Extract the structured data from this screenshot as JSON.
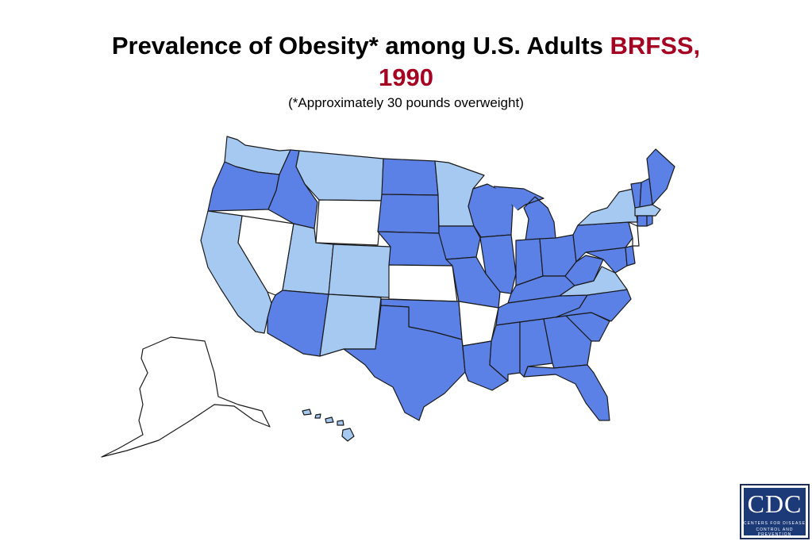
{
  "title": {
    "main": "Prevalence of Obesity* among U.S. Adults",
    "accent_line1": "BRFSS,",
    "accent_line2": "1990",
    "subtitle": "(*Approximately 30 pounds overweight)"
  },
  "legend_colors": {
    "white": "#ffffff",
    "light": "#a6c9f2",
    "medium": "#5b80e6"
  },
  "map": {
    "states": {
      "WA": "light",
      "OR": "medium",
      "CA": "light",
      "ID": "medium",
      "NV": "white",
      "MT": "light",
      "WY": "white",
      "UT": "light",
      "AZ": "medium",
      "CO": "light",
      "NM": "light",
      "ND": "medium",
      "SD": "medium",
      "NE": "medium",
      "KS": "white",
      "OK": "medium",
      "TX": "medium",
      "MN": "light",
      "IA": "medium",
      "MO": "medium",
      "AR": "white",
      "LA": "medium",
      "WI": "medium",
      "IL": "medium",
      "MI": "medium",
      "IN": "medium",
      "OH": "medium",
      "KY": "medium",
      "TN": "medium",
      "MS": "medium",
      "AL": "medium",
      "GA": "medium",
      "FL": "medium",
      "SC": "medium",
      "NC": "medium",
      "VA": "light",
      "WV": "medium",
      "PA": "medium",
      "NY": "light",
      "VT": "medium",
      "NH": "medium",
      "ME": "medium",
      "MA": "light",
      "RI": "medium",
      "CT": "medium",
      "NJ": "white",
      "DE": "medium",
      "MD": "medium",
      "AK": "white",
      "HI": "light"
    }
  },
  "logo": {
    "letters": "CDC",
    "tagline1": "CENTERS FOR DISEASE",
    "tagline2": "CONTROL AND PREVENTION"
  }
}
